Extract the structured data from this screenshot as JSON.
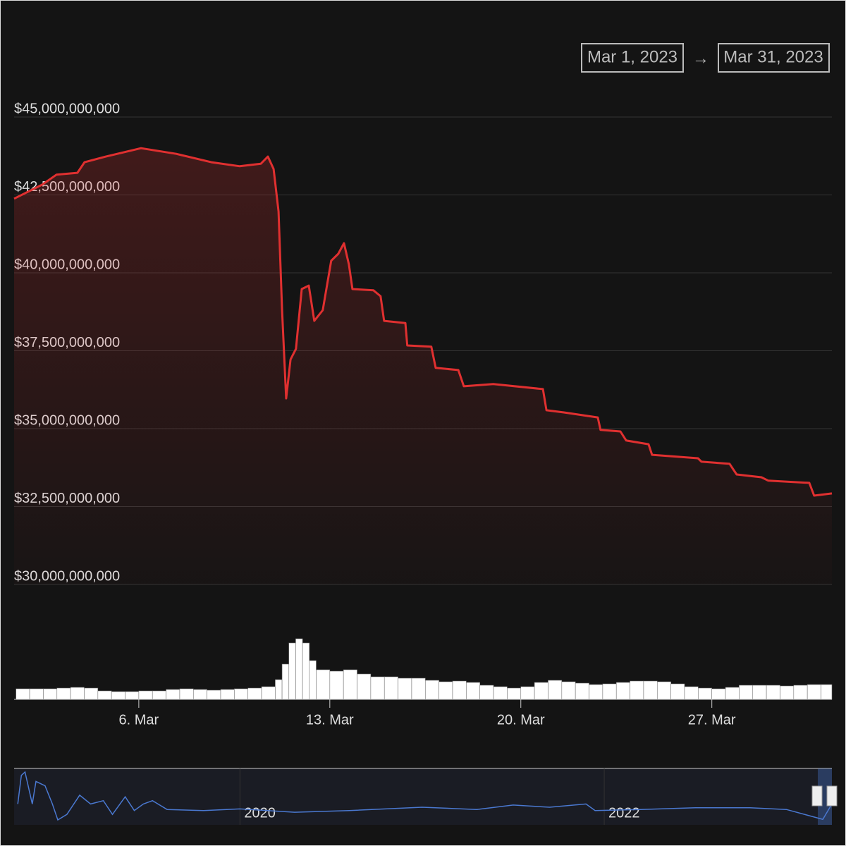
{
  "range": {
    "from": "Mar 1, 2023",
    "separator": "→",
    "to": "Mar 31, 2023"
  },
  "chart_data": [
    {
      "type": "area",
      "color": "#e03030",
      "grid": true,
      "x": [
        1.43,
        2.46,
        2.98,
        3.75,
        4.01,
        4.79,
        6.08,
        7.37,
        8.66,
        9.7,
        10.47,
        10.73,
        10.94,
        11.12,
        11.25,
        11.4,
        11.56,
        11.76,
        11.97,
        12.23,
        12.43,
        12.74,
        13.05,
        13.31,
        13.52,
        13.7,
        13.83,
        14.6,
        14.86,
        14.99,
        15.77,
        15.84,
        16.72,
        16.88,
        17.71,
        17.91,
        18.99,
        20.81,
        20.94,
        21.58,
        22.82,
        22.92,
        23.65,
        23.86,
        24.68,
        24.81,
        26.49,
        26.62,
        27.65,
        27.91,
        28.82,
        29.07,
        30.57,
        30.75,
        31.4
      ],
      "values": [
        42380000000,
        42830000000,
        43150000000,
        43210000000,
        43550000000,
        43730000000,
        44000000000,
        43820000000,
        43550000000,
        43420000000,
        43500000000,
        43730000000,
        43330000000,
        41970000000,
        38800000000,
        35970000000,
        37220000000,
        37560000000,
        39480000000,
        39590000000,
        38460000000,
        38800000000,
        40390000000,
        40610000000,
        40950000000,
        40270000000,
        39480000000,
        39440000000,
        39250000000,
        38460000000,
        38390000000,
        37670000000,
        37630000000,
        36950000000,
        36880000000,
        36360000000,
        36430000000,
        36270000000,
        35590000000,
        35520000000,
        35360000000,
        34960000000,
        34910000000,
        34620000000,
        34500000000,
        34160000000,
        34050000000,
        33940000000,
        33870000000,
        33530000000,
        33440000000,
        33330000000,
        33260000000,
        32850000000,
        32920000000
      ],
      "xlim": [
        1.43,
        31.4
      ],
      "xticks": [
        {
          "value": 6,
          "label": "6. Mar"
        },
        {
          "value": 13,
          "label": "13. Mar"
        },
        {
          "value": 20,
          "label": "20. Mar"
        },
        {
          "value": 27,
          "label": "27. Mar"
        }
      ],
      "ylim": [
        30000000000,
        45000000000
      ],
      "yticks": [
        {
          "value": 30000000000,
          "label": "$30,000,000,000"
        },
        {
          "value": 32500000000,
          "label": "$32,500,000,000"
        },
        {
          "value": 35000000000,
          "label": "$35,000,000,000"
        },
        {
          "value": 37500000000,
          "label": "$37,500,000,000"
        },
        {
          "value": 40000000000,
          "label": "$40,000,000,000"
        },
        {
          "value": 42500000000,
          "label": "$42,500,000,000"
        },
        {
          "value": 45000000000,
          "label": "$45,000,000,000"
        }
      ]
    },
    {
      "type": "bar",
      "color": "#ffffff",
      "x": [
        1.5,
        2,
        2.5,
        3,
        3.5,
        4,
        4.5,
        5,
        5.5,
        6,
        6.5,
        7,
        7.5,
        8,
        8.5,
        9,
        9.5,
        10,
        10.5,
        11,
        11.25,
        11.5,
        11.75,
        12,
        12.25,
        12.5,
        13,
        13.5,
        14,
        14.5,
        15,
        15.5,
        16,
        16.5,
        17,
        17.5,
        18,
        18.5,
        19,
        19.5,
        20,
        20.5,
        21,
        21.5,
        22,
        22.5,
        23,
        23.5,
        24,
        24.5,
        25,
        25.5,
        26,
        26.5,
        27,
        27.5,
        28,
        28.5,
        29,
        29.5,
        30,
        30.5,
        31
      ],
      "values": [
        15,
        15,
        15,
        16,
        17,
        16,
        12,
        11,
        11,
        12,
        12,
        14,
        15,
        14,
        13,
        14,
        15,
        16,
        18,
        28,
        50,
        80,
        86,
        80,
        55,
        42,
        40,
        42,
        36,
        32,
        32,
        30,
        30,
        27,
        25,
        26,
        24,
        20,
        18,
        16,
        18,
        24,
        27,
        25,
        23,
        21,
        22,
        24,
        26,
        26,
        25,
        22,
        18,
        16,
        15,
        17,
        20,
        20,
        20,
        19,
        20,
        21,
        21
      ],
      "xlim": [
        1.43,
        31.4
      ],
      "ylim": [
        0,
        100
      ]
    },
    {
      "type": "line",
      "color": "#4a78d0",
      "x": [
        2018.78,
        2018.8,
        2018.82,
        2018.86,
        2018.88,
        2018.93,
        2018.97,
        2019.0,
        2019.05,
        2019.12,
        2019.18,
        2019.25,
        2019.3,
        2019.37,
        2019.42,
        2019.47,
        2019.52,
        2019.6,
        2019.8,
        2020.0,
        2020.3,
        2020.6,
        2021.0,
        2021.3,
        2021.5,
        2021.7,
        2021.9,
        2021.95,
        2022.2,
        2022.5,
        2022.8,
        2023.0,
        2023.2,
        2023.25
      ],
      "values": [
        38,
        90,
        96,
        38,
        79,
        71,
        38,
        9,
        19,
        54,
        38,
        44,
        19,
        51,
        26,
        38,
        44,
        28,
        26,
        29,
        23,
        26,
        32,
        28,
        36,
        32,
        38,
        26,
        28,
        31,
        31,
        28,
        10,
        38
      ],
      "xlim": [
        2018.76,
        2023.25
      ],
      "ylim": [
        0,
        100
      ],
      "xticks": [
        2020,
        2022
      ]
    }
  ]
}
